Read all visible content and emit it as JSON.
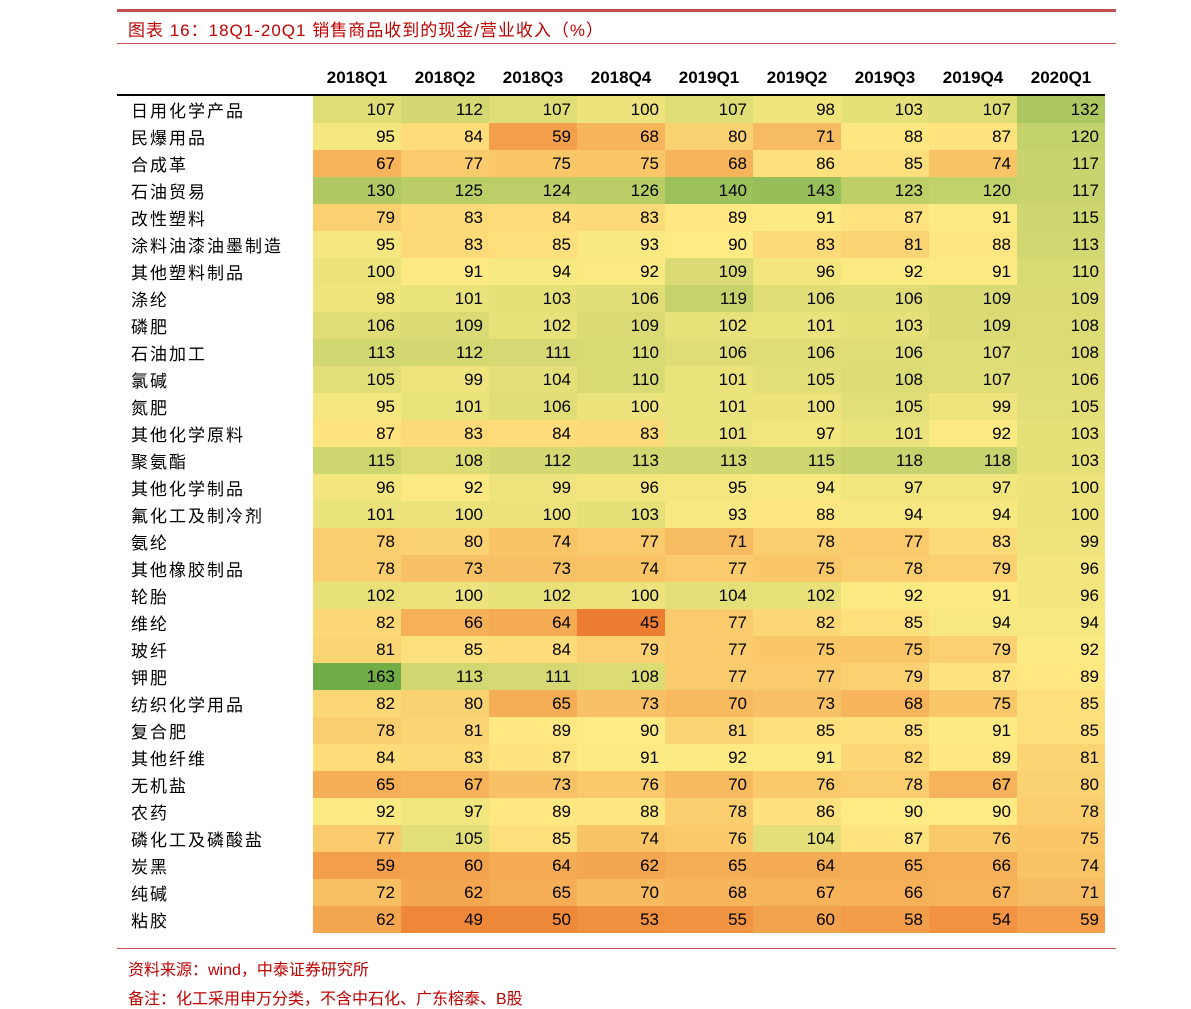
{
  "title": "图表 16：18Q1-20Q1 销售商品收到的现金/营业收入（%）",
  "table": {
    "columns": [
      "2018Q1",
      "2018Q2",
      "2018Q3",
      "2018Q4",
      "2019Q1",
      "2019Q2",
      "2019Q3",
      "2019Q4",
      "2020Q1"
    ],
    "color_scale": {
      "low": "#ED7D31",
      "mid": "#FFEB84",
      "high": "#70AD47"
    },
    "rows": [
      {
        "label": "日用化学产品",
        "values": [
          107,
          112,
          107,
          100,
          107,
          98,
          103,
          107,
          132
        ]
      },
      {
        "label": "民爆用品",
        "values": [
          95,
          84,
          59,
          68,
          80,
          71,
          88,
          87,
          120
        ]
      },
      {
        "label": "合成革",
        "values": [
          67,
          77,
          75,
          75,
          68,
          86,
          85,
          74,
          117
        ]
      },
      {
        "label": "石油贸易",
        "values": [
          130,
          125,
          124,
          126,
          140,
          143,
          123,
          120,
          117
        ]
      },
      {
        "label": "改性塑料",
        "values": [
          79,
          83,
          84,
          83,
          89,
          91,
          87,
          91,
          115
        ]
      },
      {
        "label": "涂料油漆油墨制造",
        "values": [
          95,
          83,
          85,
          93,
          90,
          83,
          81,
          88,
          113
        ]
      },
      {
        "label": "其他塑料制品",
        "values": [
          100,
          91,
          94,
          92,
          109,
          96,
          92,
          91,
          110
        ]
      },
      {
        "label": "涤纶",
        "values": [
          98,
          101,
          103,
          106,
          119,
          106,
          106,
          109,
          109
        ]
      },
      {
        "label": "磷肥",
        "values": [
          106,
          109,
          102,
          109,
          102,
          101,
          103,
          109,
          108
        ]
      },
      {
        "label": "石油加工",
        "values": [
          113,
          112,
          111,
          110,
          106,
          106,
          106,
          107,
          108
        ]
      },
      {
        "label": "氯碱",
        "values": [
          105,
          99,
          104,
          110,
          101,
          105,
          108,
          107,
          106
        ]
      },
      {
        "label": "氮肥",
        "values": [
          95,
          101,
          106,
          100,
          101,
          100,
          105,
          99,
          105
        ]
      },
      {
        "label": "其他化学原料",
        "values": [
          87,
          83,
          84,
          83,
          101,
          97,
          101,
          92,
          103
        ]
      },
      {
        "label": "聚氨酯",
        "values": [
          115,
          108,
          112,
          113,
          113,
          115,
          118,
          118,
          103
        ]
      },
      {
        "label": "其他化学制品",
        "values": [
          96,
          92,
          99,
          96,
          95,
          94,
          97,
          97,
          100
        ]
      },
      {
        "label": "氟化工及制冷剂",
        "values": [
          101,
          100,
          100,
          103,
          93,
          88,
          94,
          94,
          100
        ]
      },
      {
        "label": "氨纶",
        "values": [
          78,
          80,
          74,
          77,
          71,
          78,
          77,
          83,
          99
        ]
      },
      {
        "label": "其他橡胶制品",
        "values": [
          78,
          73,
          73,
          74,
          77,
          75,
          78,
          79,
          96
        ]
      },
      {
        "label": "轮胎",
        "values": [
          102,
          100,
          102,
          100,
          104,
          102,
          92,
          91,
          96
        ]
      },
      {
        "label": "维纶",
        "values": [
          82,
          66,
          64,
          45,
          77,
          82,
          85,
          94,
          94
        ]
      },
      {
        "label": "玻纤",
        "values": [
          81,
          85,
          84,
          79,
          77,
          75,
          75,
          79,
          92
        ]
      },
      {
        "label": "钾肥",
        "values": [
          163,
          113,
          111,
          108,
          77,
          77,
          79,
          87,
          89
        ]
      },
      {
        "label": "纺织化学用品",
        "values": [
          82,
          80,
          65,
          73,
          70,
          73,
          68,
          75,
          85
        ]
      },
      {
        "label": "复合肥",
        "values": [
          78,
          81,
          89,
          90,
          81,
          85,
          85,
          91,
          85
        ]
      },
      {
        "label": "其他纤维",
        "values": [
          84,
          83,
          87,
          91,
          92,
          91,
          82,
          89,
          81
        ]
      },
      {
        "label": "无机盐",
        "values": [
          65,
          67,
          73,
          76,
          70,
          76,
          78,
          67,
          80
        ]
      },
      {
        "label": "农药",
        "values": [
          92,
          97,
          89,
          88,
          78,
          86,
          90,
          90,
          78
        ]
      },
      {
        "label": "磷化工及磷酸盐",
        "values": [
          77,
          105,
          85,
          74,
          76,
          104,
          87,
          76,
          75
        ]
      },
      {
        "label": "炭黑",
        "values": [
          59,
          60,
          64,
          62,
          65,
          64,
          65,
          66,
          74
        ]
      },
      {
        "label": "纯碱",
        "values": [
          72,
          62,
          65,
          70,
          68,
          67,
          66,
          67,
          71
        ]
      },
      {
        "label": "粘胶",
        "values": [
          62,
          49,
          50,
          53,
          55,
          60,
          58,
          54,
          59
        ]
      }
    ]
  },
  "source": "资料来源：wind，中泰证券研究所",
  "note": "备注：化工采用申万分类，不含中石化、广东榕泰、B股"
}
